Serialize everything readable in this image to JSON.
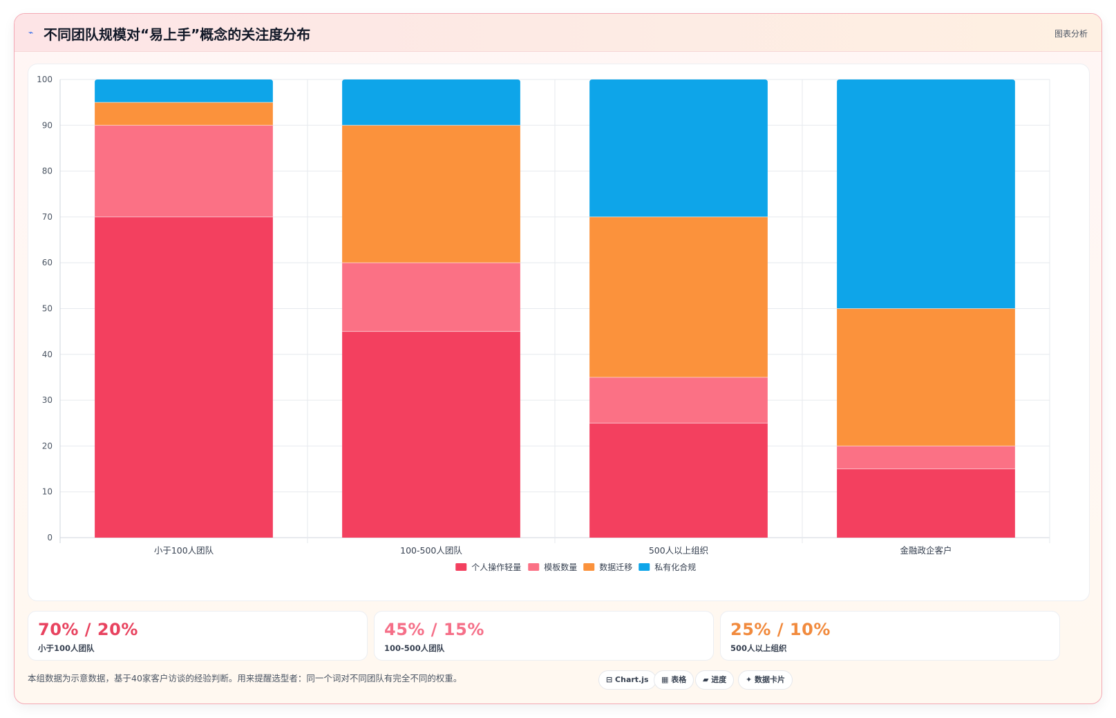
{
  "header": {
    "icon": "chart-line-icon",
    "icon_glyph": "⌁",
    "title": "不同团队规模对“易上手”概念的关注度分布",
    "tag": "图表分析"
  },
  "chart_data": {
    "type": "bar",
    "stacked": true,
    "categories": [
      "小于100人团队",
      "100-500人团队",
      "500人以上组织",
      "金融政企客户"
    ],
    "series": [
      {
        "name": "个人操作轻量",
        "color": "#f3405f",
        "values": [
          70,
          45,
          25,
          15
        ]
      },
      {
        "name": "模板数量",
        "color": "#fb7185",
        "values": [
          20,
          15,
          10,
          5
        ]
      },
      {
        "name": "数据迁移",
        "color": "#fb923c",
        "values": [
          5,
          30,
          35,
          30
        ]
      },
      {
        "name": "私有化合规",
        "color": "#0ea5e9",
        "values": [
          5,
          10,
          30,
          50
        ]
      }
    ],
    "ylim": [
      0,
      100
    ],
    "yticks": [
      0,
      10,
      20,
      30,
      40,
      50,
      60,
      70,
      80,
      90,
      100
    ],
    "grid": true,
    "legend_position": "bottom"
  },
  "stats": [
    {
      "value": "70% / 20%",
      "label": "小于100人团队",
      "color": "#e8435f"
    },
    {
      "value": "45% / 15%",
      "label": "100-500人团队",
      "color": "#f56f88"
    },
    {
      "value": "25% / 10%",
      "label": "500人以上组织",
      "color": "#f18a3d"
    }
  ],
  "footnote": "本组数据为示意数据，基于40家客户访谈的经验判断。用来提醒选型者：同一个词对不同团队有完全不同的权重。",
  "chips": [
    {
      "label": "⊟ Chart.js"
    },
    {
      "label": "▦ 表格"
    },
    {
      "label": "▰ 进度"
    },
    {
      "label": "✦ 数据卡片"
    }
  ]
}
